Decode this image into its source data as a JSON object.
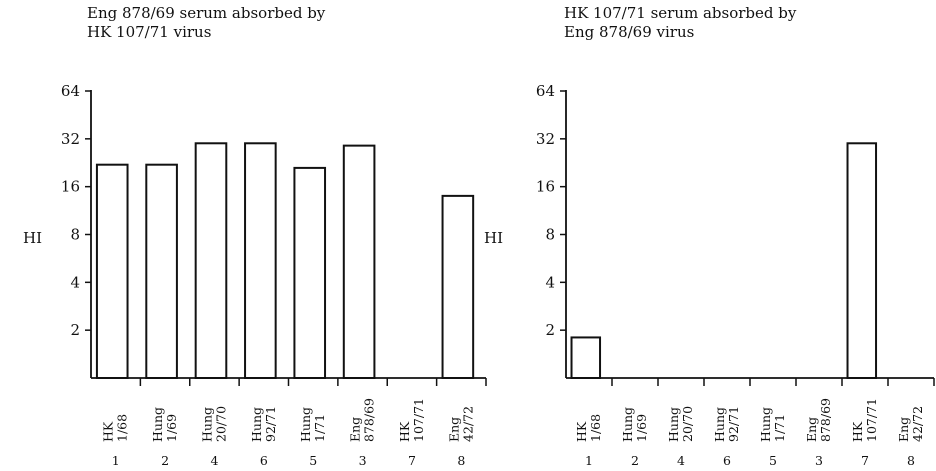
{
  "chart_data": [
    {
      "type": "bar",
      "title": "Eng 878/69 serum absorbed by HK 107/71 virus",
      "title_lines": [
        "Eng 878/69 serum absorbed by",
        "HK 107/71 virus"
      ],
      "ylabel": "HI",
      "xlabel": "",
      "y_scale": "log2",
      "yticks": [
        2,
        4,
        8,
        16,
        32,
        64
      ],
      "ylim": [
        1,
        64
      ],
      "categories": [
        {
          "name": [
            "HK",
            "1/68"
          ],
          "number": "1"
        },
        {
          "name": [
            "Hung",
            "1/69"
          ],
          "number": "2"
        },
        {
          "name": [
            "Hung",
            "20/70"
          ],
          "number": "4"
        },
        {
          "name": [
            "Hung",
            "92/71"
          ],
          "number": "6"
        },
        {
          "name": [
            "Hung",
            "1/71"
          ],
          "number": "5"
        },
        {
          "name": [
            "Eng",
            "878/69"
          ],
          "number": "3"
        },
        {
          "name": [
            "HK",
            "107/71"
          ],
          "number": "7"
        },
        {
          "name": [
            "Eng",
            "42/72"
          ],
          "number": "8"
        }
      ],
      "values": [
        22,
        22,
        30,
        30,
        21,
        29,
        null,
        14
      ]
    },
    {
      "type": "bar",
      "title": "HK 107/71 serum absorbed by Eng 878/69 virus",
      "title_lines": [
        "HK 107/71 serum absorbed by",
        "Eng 878/69 virus"
      ],
      "ylabel": "HI",
      "xlabel": "",
      "y_scale": "log2",
      "yticks": [
        2,
        4,
        8,
        16,
        32,
        64
      ],
      "ylim": [
        1,
        64
      ],
      "categories": [
        {
          "name": [
            "HK",
            "1/68"
          ],
          "number": "1"
        },
        {
          "name": [
            "Hung",
            "1/69"
          ],
          "number": "2"
        },
        {
          "name": [
            "Hung",
            "20/70"
          ],
          "number": "4"
        },
        {
          "name": [
            "Hung",
            "92/71"
          ],
          "number": "6"
        },
        {
          "name": [
            "Hung",
            "1/71"
          ],
          "number": "5"
        },
        {
          "name": [
            "Eng",
            "878/69"
          ],
          "number": "3"
        },
        {
          "name": [
            "HK",
            "107/71"
          ],
          "number": "7"
        },
        {
          "name": [
            "Eng",
            "42/72"
          ],
          "number": "8"
        }
      ],
      "values": [
        1.8,
        null,
        null,
        null,
        null,
        null,
        30,
        null
      ]
    }
  ]
}
